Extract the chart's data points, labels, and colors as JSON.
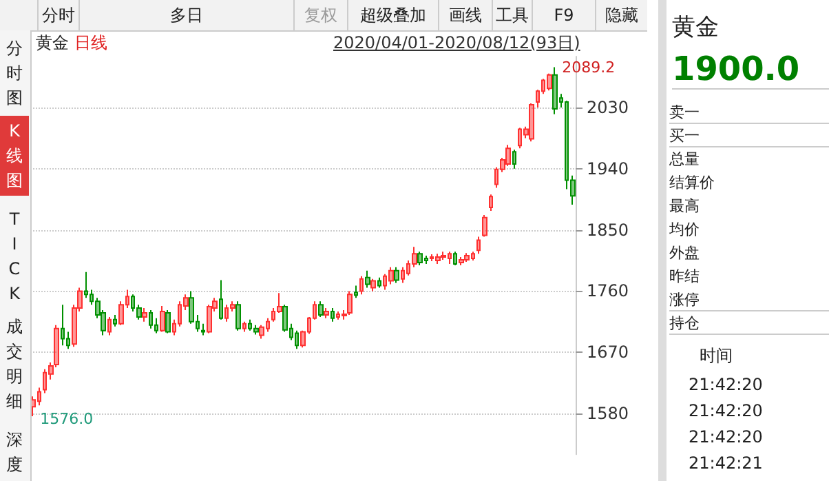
{
  "chart_data": [
    {
      "type": "candlestick",
      "title": "黄金",
      "subtitle": "日线",
      "annotations": [
        "2089.2",
        "1576.0",
        "2020/04/01-2020/08/12(93日)"
      ],
      "colors": [
        "#ff3030",
        "#ff3030",
        "#ff3030",
        "#ff3030",
        "#ff3030",
        "#009000",
        "#009000",
        "#ff3030",
        "#ff3030",
        "#009000",
        "#009000",
        "#009000",
        "#009000",
        "#ff3030",
        "#009000",
        "#ff3030",
        "#ff3030",
        "#009000",
        "#009000",
        "#ff3030",
        "#009000",
        "#009000",
        "#ff3030",
        "#009000",
        "#ff3030",
        "#ff3030",
        "#ff3030",
        "#009000",
        "#009000",
        "#009000",
        "#ff3030",
        "#ff3030",
        "#009000",
        "#ff3030",
        "#ff3030",
        "#009000",
        "#ff3030",
        "#009000",
        "#009000",
        "#ff3030",
        "#ff3030",
        "#ff3030",
        "#ff3030",
        "#009000",
        "#009000",
        "#009000",
        "#ff3030",
        "#ff3030",
        "#ff3030",
        "#009000",
        "#ff3030",
        "#009000",
        "#ff3030",
        "#ff3030",
        "#ff3030",
        "#009000",
        "#ff3030",
        "#009000",
        "#ff3030",
        "#009000",
        "#ff3030",
        "#ff3030",
        "#009000",
        "#ff3030",
        "#ff3030",
        "#ff3030",
        "#009000",
        "#009000",
        "#ff3030",
        "#ff3030",
        "#ff3030",
        "#ff3030",
        "#009000",
        "#ff3030",
        "#ff3030",
        "#ff3030",
        "#ff3030",
        "#ff3030",
        "#ff3030",
        "#ff3030",
        "#ff3030",
        "#ff3030",
        "#009000",
        "#ff3030",
        "#ff3030",
        "#ff3030",
        "#ff3030",
        "#ff3030",
        "#ff3030",
        "#009000",
        "#009000",
        "#009000",
        "#009000"
      ],
      "categories": [
        null,
        null,
        null,
        null,
        null,
        null,
        null,
        null,
        null,
        null,
        null,
        null,
        null,
        null,
        null,
        null,
        null,
        null,
        null,
        null,
        null,
        null,
        null,
        null,
        null,
        null,
        null,
        null,
        null,
        null,
        null,
        null,
        null,
        null,
        null,
        null,
        null,
        null,
        null,
        null,
        null,
        null,
        null,
        null,
        null,
        null,
        null,
        null,
        null,
        null,
        null,
        null,
        null,
        null,
        null,
        null,
        null,
        null,
        null,
        null,
        null,
        null,
        null,
        null,
        null,
        null,
        null,
        null,
        null,
        null,
        null,
        null,
        null,
        null,
        null,
        null,
        null,
        null,
        null,
        null,
        null,
        null,
        null,
        null,
        null,
        null,
        null,
        null,
        null,
        null,
        null,
        null,
        null
      ],
      "ohlc": [
        [
          1590,
          1605,
          1576,
          1600
        ],
        [
          1598,
          1618,
          1592,
          1612
        ],
        [
          1615,
          1645,
          1610,
          1640
        ],
        [
          1638,
          1655,
          1630,
          1650
        ],
        [
          1652,
          1710,
          1648,
          1705
        ],
        [
          1705,
          1740,
          1680,
          1690
        ],
        [
          1690,
          1700,
          1675,
          1680
        ],
        [
          1682,
          1740,
          1678,
          1735
        ],
        [
          1735,
          1765,
          1730,
          1760
        ],
        [
          1760,
          1788,
          1750,
          1755
        ],
        [
          1755,
          1762,
          1740,
          1745
        ],
        [
          1745,
          1750,
          1720,
          1725
        ],
        [
          1728,
          1732,
          1695,
          1702
        ],
        [
          1700,
          1722,
          1695,
          1718
        ],
        [
          1718,
          1725,
          1708,
          1712
        ],
        [
          1712,
          1745,
          1710,
          1740
        ],
        [
          1740,
          1762,
          1735,
          1752
        ],
        [
          1752,
          1755,
          1730,
          1735
        ],
        [
          1735,
          1740,
          1718,
          1722
        ],
        [
          1722,
          1735,
          1715,
          1728
        ],
        [
          1728,
          1732,
          1705,
          1710
        ],
        [
          1710,
          1720,
          1698,
          1702
        ],
        [
          1702,
          1738,
          1700,
          1730
        ],
        [
          1728,
          1732,
          1698,
          1700
        ],
        [
          1700,
          1718,
          1695,
          1712
        ],
        [
          1712,
          1745,
          1708,
          1740
        ],
        [
          1738,
          1755,
          1732,
          1750
        ],
        [
          1750,
          1760,
          1712,
          1715
        ],
        [
          1715,
          1725,
          1700,
          1705
        ],
        [
          1702,
          1712,
          1695,
          1700
        ],
        [
          1700,
          1740,
          1698,
          1737
        ],
        [
          1735,
          1750,
          1730,
          1745
        ],
        [
          1748,
          1776,
          1718,
          1720
        ],
        [
          1720,
          1740,
          1715,
          1735
        ],
        [
          1735,
          1745,
          1730,
          1740
        ],
        [
          1740,
          1745,
          1702,
          1705
        ],
        [
          1705,
          1715,
          1700,
          1712
        ],
        [
          1712,
          1718,
          1702,
          1705
        ],
        [
          1705,
          1710,
          1696,
          1700
        ],
        [
          1695,
          1710,
          1690,
          1707
        ],
        [
          1705,
          1720,
          1700,
          1715
        ],
        [
          1718,
          1735,
          1715,
          1730
        ],
        [
          1730,
          1757,
          1728,
          1737
        ],
        [
          1737,
          1740,
          1700,
          1703
        ],
        [
          1705,
          1712,
          1688,
          1692
        ],
        [
          1698,
          1702,
          1675,
          1680
        ],
        [
          1680,
          1702,
          1677,
          1700
        ],
        [
          1700,
          1722,
          1697,
          1720
        ],
        [
          1720,
          1745,
          1718,
          1740
        ],
        [
          1740,
          1745,
          1722,
          1725
        ],
        [
          1725,
          1735,
          1720,
          1730
        ],
        [
          1730,
          1735,
          1715,
          1720
        ],
        [
          1722,
          1730,
          1718,
          1726
        ],
        [
          1724,
          1732,
          1718,
          1726
        ],
        [
          1728,
          1760,
          1725,
          1755
        ],
        [
          1758,
          1768,
          1750,
          1754
        ],
        [
          1760,
          1782,
          1755,
          1778
        ],
        [
          1780,
          1790,
          1765,
          1770
        ],
        [
          1765,
          1778,
          1760,
          1775
        ],
        [
          1775,
          1780,
          1765,
          1768
        ],
        [
          1768,
          1785,
          1762,
          1782
        ],
        [
          1775,
          1795,
          1770,
          1790
        ],
        [
          1790,
          1795,
          1772,
          1776
        ],
        [
          1778,
          1795,
          1772,
          1790
        ],
        [
          1786,
          1805,
          1783,
          1800
        ],
        [
          1800,
          1825,
          1795,
          1815
        ],
        [
          1815,
          1818,
          1798,
          1802
        ],
        [
          1808,
          1812,
          1800,
          1805
        ],
        [
          1808,
          1814,
          1804,
          1810
        ],
        [
          1805,
          1815,
          1800,
          1810
        ],
        [
          1810,
          1818,
          1806,
          1812
        ],
        [
          1808,
          1818,
          1800,
          1815
        ],
        [
          1815,
          1818,
          1798,
          1800
        ],
        [
          1802,
          1810,
          1798,
          1806
        ],
        [
          1806,
          1816,
          1803,
          1812
        ],
        [
          1808,
          1818,
          1805,
          1815
        ],
        [
          1820,
          1840,
          1815,
          1835
        ],
        [
          1842,
          1872,
          1840,
          1868
        ],
        [
          1883,
          1902,
          1878,
          1899
        ],
        [
          1917,
          1942,
          1912,
          1939
        ],
        [
          1939,
          1956,
          1935,
          1953
        ],
        [
          1947,
          1975,
          1944,
          1970
        ],
        [
          1965,
          1968,
          1940,
          1947
        ],
        [
          1974,
          2000,
          1970,
          1998
        ],
        [
          1990,
          2002,
          1985,
          1998
        ],
        [
          1984,
          2036,
          1980,
          2034
        ],
        [
          2038,
          2056,
          2030,
          2054
        ],
        [
          2054,
          2072,
          2050,
          2070
        ],
        [
          2058,
          2080,
          2055,
          2078
        ],
        [
          2078,
          2089.2,
          2020,
          2028
        ],
        [
          2044,
          2050,
          2030,
          2038
        ],
        [
          2038,
          2040,
          1910,
          1923
        ],
        [
          1923,
          1930,
          1887,
          1900
        ]
      ],
      "ylim": [
        1520,
        2105
      ],
      "yticks": [
        1580,
        1670,
        1760,
        1850,
        1940,
        2030
      ],
      "grid": "y"
    },
    {
      "type": "other",
      "annotations": [
        "分时",
        "多日",
        "复权",
        "超级叠加",
        "画线",
        "工具",
        "F9",
        "隐藏"
      ]
    },
    {
      "type": "other",
      "annotations": [
        "分时图",
        "K线图",
        "TICK",
        "成交明细",
        "深度"
      ]
    },
    {
      "type": "other",
      "title": "黄金",
      "annotations": [
        "1900.0",
        "卖一",
        "买一",
        "总量",
        "结算价",
        "最高",
        "均价",
        "外盘",
        "昨结",
        "涨停",
        "持仓",
        "时间",
        "21:42:20",
        "21:42:20",
        "21:42:20",
        "21:42:21"
      ]
    }
  ]
}
